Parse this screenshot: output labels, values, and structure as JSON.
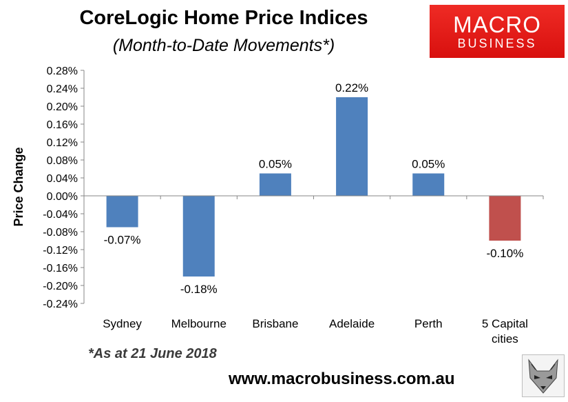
{
  "header": {
    "title": "CoreLogic Home Price Indices",
    "subtitle": "(Month-to-Date Movements*)"
  },
  "logo": {
    "line1": "MACRO",
    "line2": "BUSINESS"
  },
  "footnote": "*As at 21 June 2018",
  "website": "www.macrobusiness.com.au",
  "chart_data": {
    "type": "bar",
    "title": "CoreLogic Home Price Indices",
    "subtitle": "(Month-to-Date Movements*)",
    "ylabel": "Price Change",
    "xlabel": "",
    "categories": [
      "Sydney",
      "Melbourne",
      "Brisbane",
      "Adelaide",
      "Perth",
      "5 Capital cities"
    ],
    "values": [
      -0.07,
      -0.18,
      0.05,
      0.22,
      0.05,
      -0.1
    ],
    "data_labels": [
      "-0.07%",
      "-0.18%",
      "0.05%",
      "0.22%",
      "0.05%",
      "-0.10%"
    ],
    "ylim": [
      -0.24,
      0.28
    ],
    "yticks": [
      "0.28%",
      "0.24%",
      "0.20%",
      "0.16%",
      "0.12%",
      "0.08%",
      "0.04%",
      "0.00%",
      "-0.04%",
      "-0.08%",
      "-0.12%",
      "-0.16%",
      "-0.20%",
      "-0.24%"
    ],
    "colors": [
      "#4f81bd",
      "#4f81bd",
      "#4f81bd",
      "#4f81bd",
      "#4f81bd",
      "#c0504d"
    ],
    "grid": false,
    "legend": "none"
  }
}
